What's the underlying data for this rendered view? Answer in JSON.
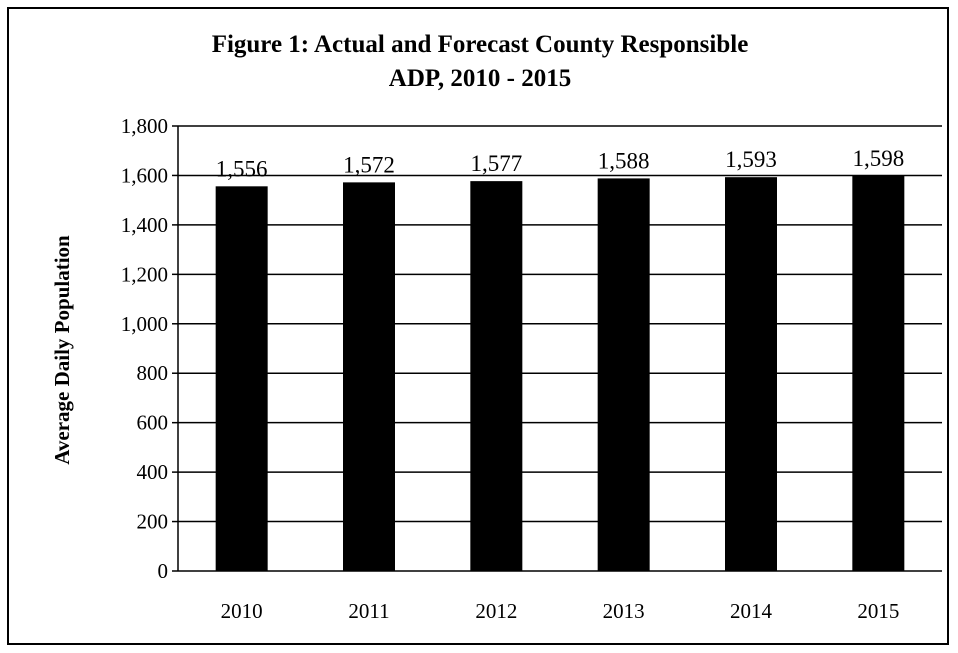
{
  "chart_data": {
    "type": "bar",
    "title_lines": [
      "Figure 1: Actual and Forecast County Responsible",
      "ADP, 2010 - 2015"
    ],
    "ylabel": "Average Daily Population",
    "xlabel": "",
    "categories": [
      "2010",
      "2011",
      "2012",
      "2013",
      "2014",
      "2015"
    ],
    "values": [
      1556,
      1572,
      1577,
      1588,
      1593,
      1598
    ],
    "value_labels": [
      "1,556",
      "1,572",
      "1,577",
      "1,588",
      "1,593",
      "1,598"
    ],
    "ylim": [
      0,
      1800
    ],
    "yticks": [
      0,
      200,
      400,
      600,
      800,
      1000,
      1200,
      1400,
      1600,
      1800
    ],
    "ytick_labels": [
      "0",
      "200",
      "400",
      "600",
      "800",
      "1,000",
      "1,200",
      "1,400",
      "1,600",
      "1,800"
    ],
    "grid": true,
    "legend": "none",
    "bar_color": "#000000"
  }
}
